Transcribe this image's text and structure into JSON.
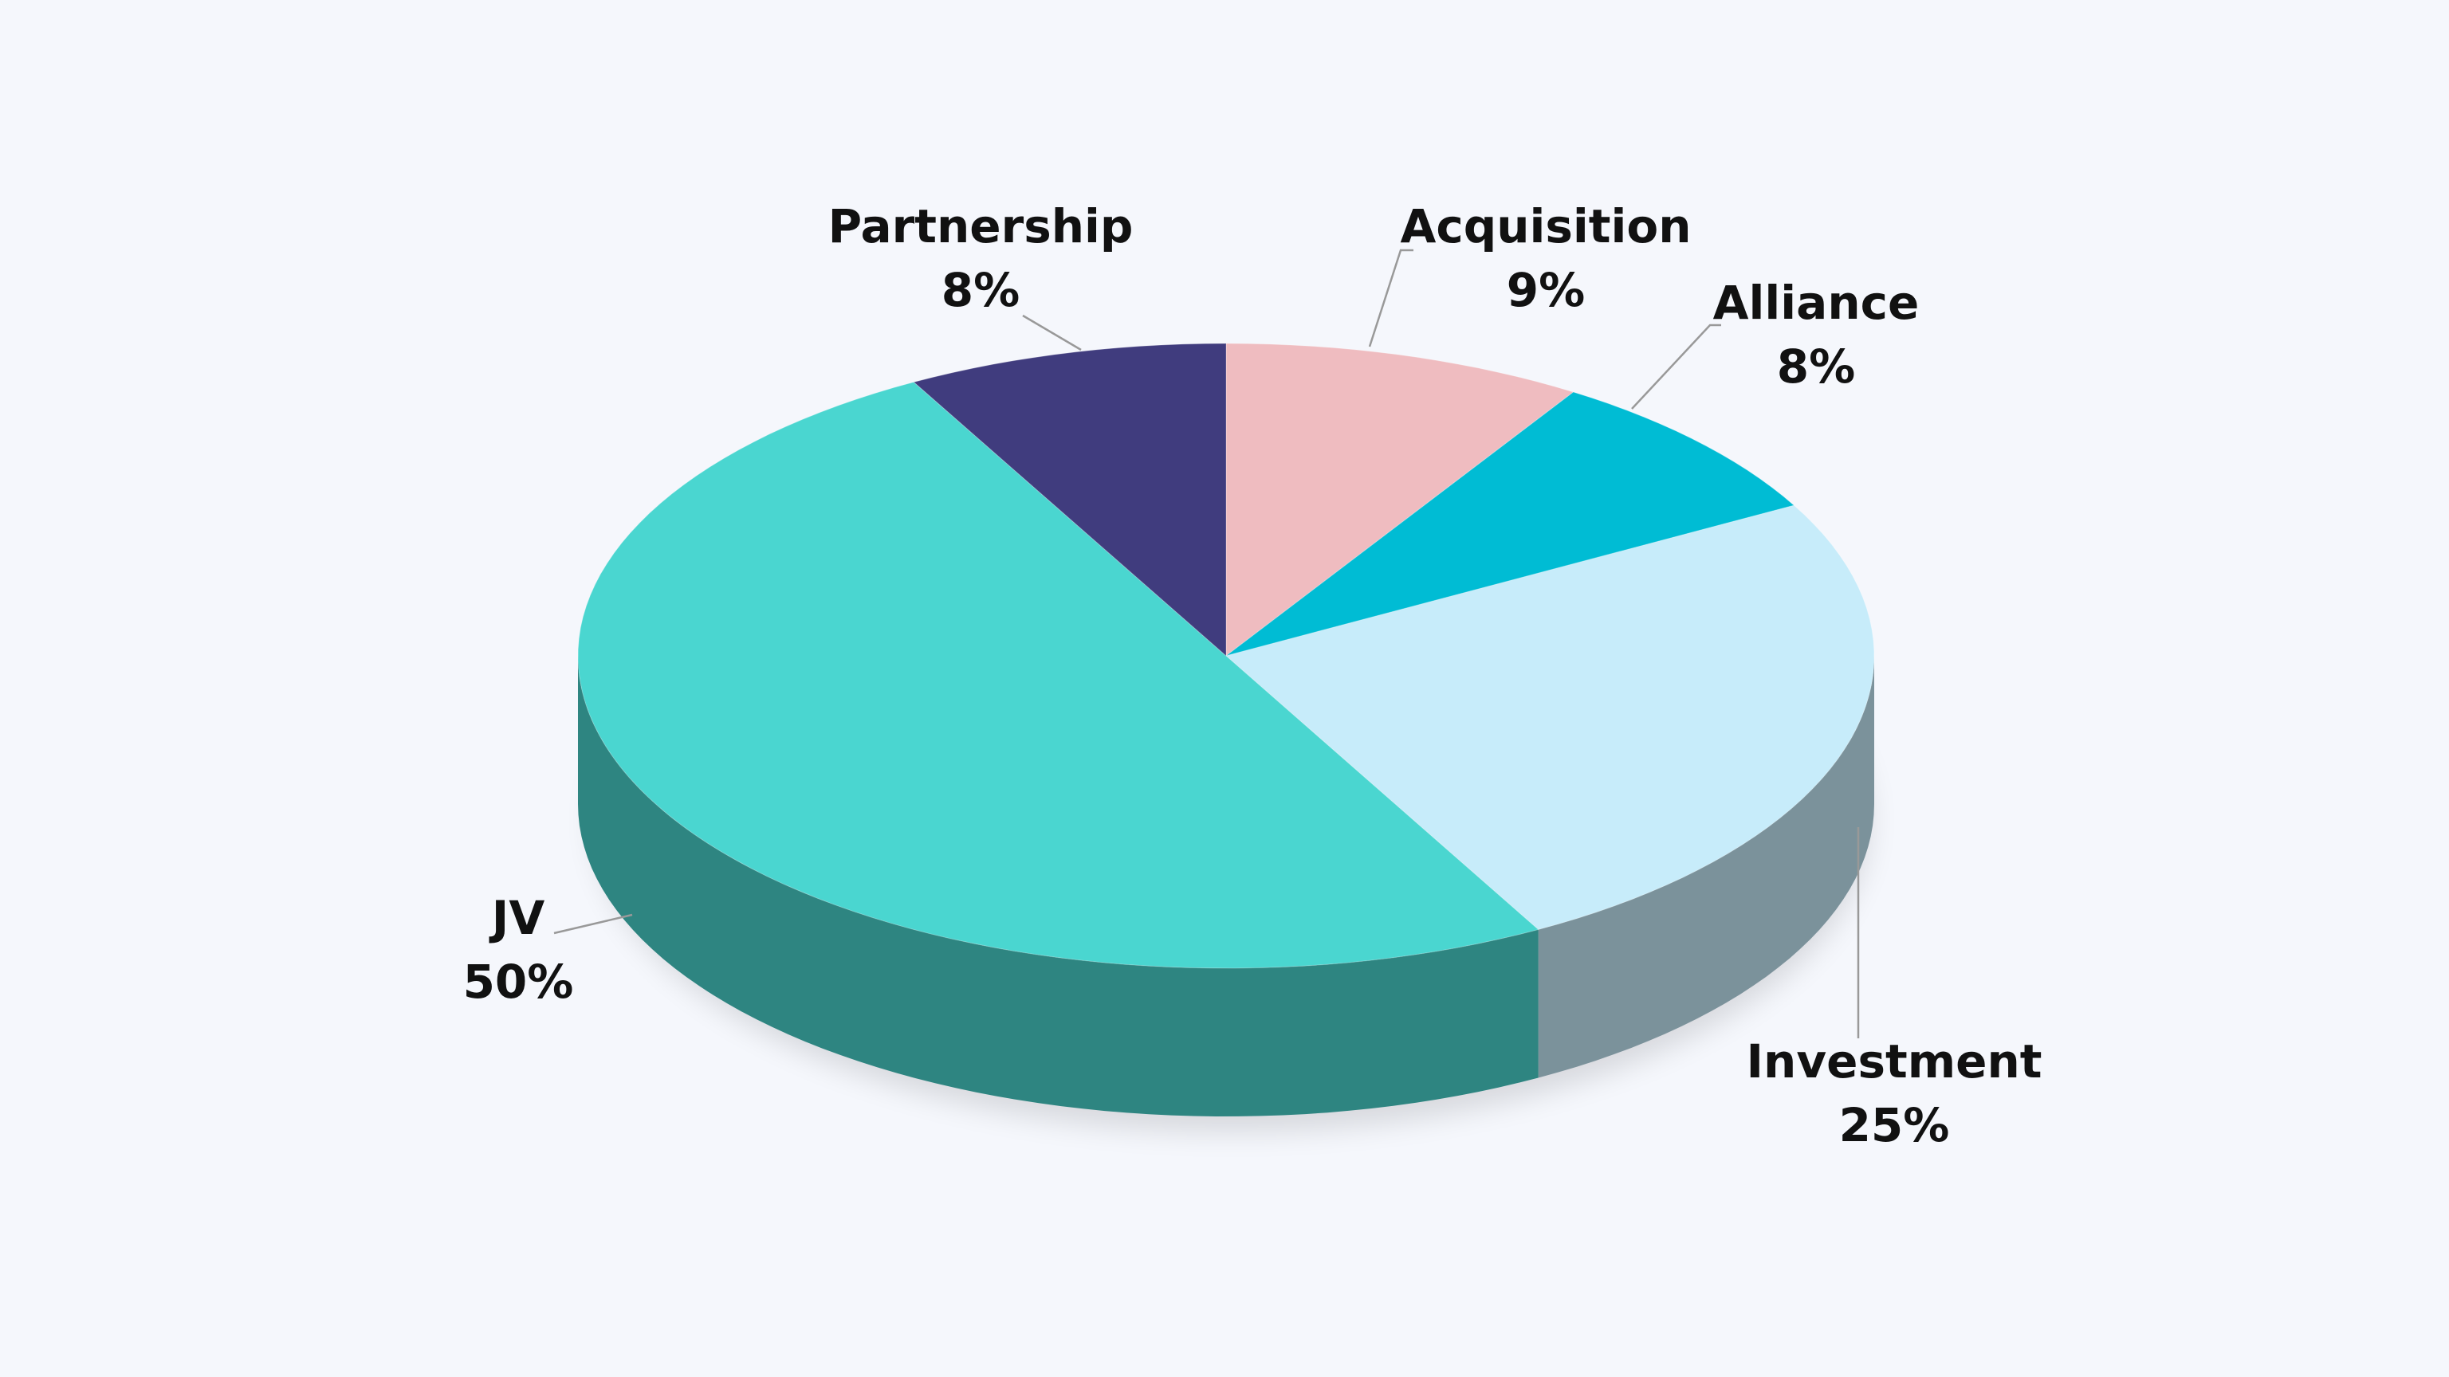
{
  "chart_data": {
    "type": "pie",
    "categories": [
      "Acquisition",
      "Alliance",
      "Investment",
      "JV",
      "Partnership"
    ],
    "values": [
      9,
      8,
      25,
      50,
      8
    ],
    "value_labels": [
      "9%",
      "8%",
      "25%",
      "50%",
      "8%"
    ],
    "colors": [
      "#efbcc0",
      "#00bcd4",
      "#c7ecfa",
      "#4ad6d0",
      "#403c7e"
    ]
  }
}
